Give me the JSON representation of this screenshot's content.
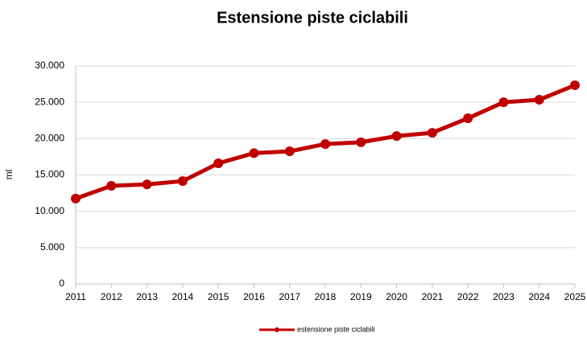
{
  "chart_data": {
    "type": "line",
    "title": "Estensione piste ciclabili",
    "y_label": "ml",
    "categories": [
      "2011",
      "2012",
      "2013",
      "2014",
      "2015",
      "2016",
      "2017",
      "2018",
      "2019",
      "2020",
      "2021",
      "2022",
      "2023",
      "2024",
      "2025"
    ],
    "series": [
      {
        "name": "estensione piste ciclabili",
        "color": "#c00000",
        "values": [
          11750,
          13500,
          13700,
          14150,
          16600,
          18000,
          18250,
          19250,
          19500,
          20350,
          20800,
          22800,
          25000,
          25350,
          27350
        ]
      }
    ],
    "ylim": [
      0,
      30000
    ],
    "yticks": [
      0,
      {
        "value": 5000,
        "label": "5.000"
      },
      {
        "value": 10000,
        "label": "10.000"
      },
      {
        "value": 15000,
        "label": "15.000"
      },
      {
        "value": 20000,
        "label": "20.000"
      },
      {
        "value": 25000,
        "label": "25.000"
      },
      {
        "value": 30000,
        "label": "30.000"
      }
    ],
    "grid": true,
    "legend": "bottom"
  }
}
